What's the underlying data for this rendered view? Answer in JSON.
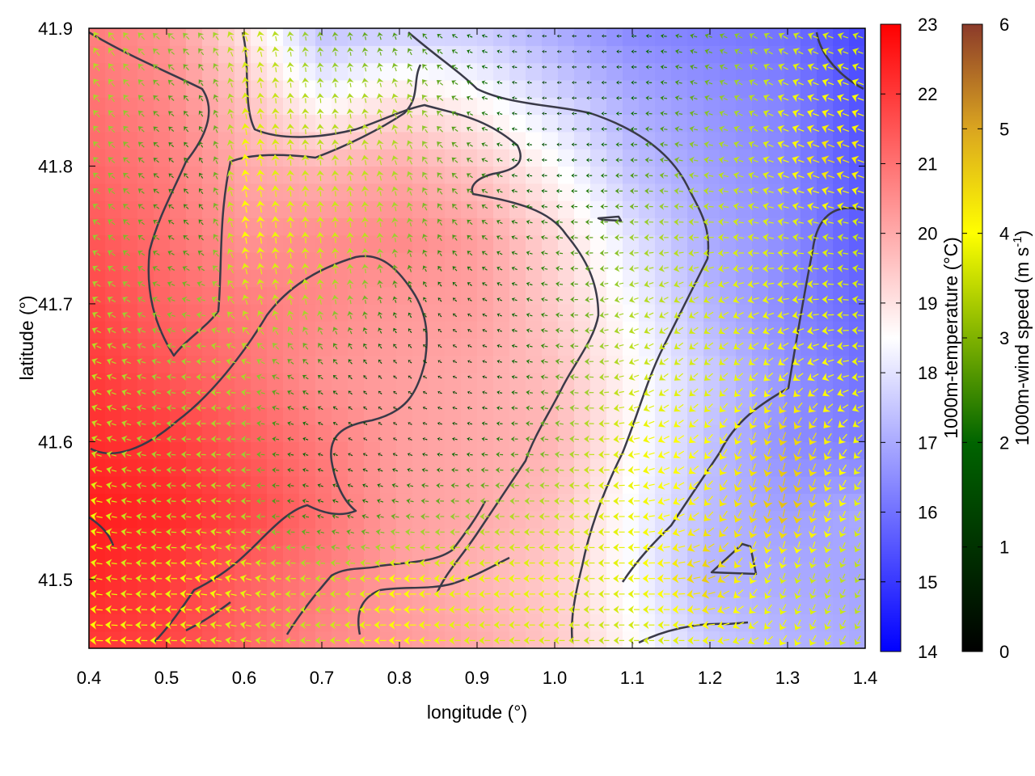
{
  "chart_data": {
    "type": "heatmap",
    "overlay": "vector-field",
    "title": "",
    "xlabel": "longitude (°)",
    "ylabel": "latitude (°)",
    "xlim": [
      0.4,
      1.4
    ],
    "ylim": [
      41.45,
      41.9
    ],
    "x_ticks": [
      {
        "value": 0.4,
        "label": "0.4"
      },
      {
        "value": 0.5,
        "label": "0.5"
      },
      {
        "value": 0.6,
        "label": "0.6"
      },
      {
        "value": 0.7,
        "label": "0.7"
      },
      {
        "value": 0.8,
        "label": "0.8"
      },
      {
        "value": 0.9,
        "label": "0.9"
      },
      {
        "value": 1.0,
        "label": "1.0"
      },
      {
        "value": 1.1,
        "label": "1.1"
      },
      {
        "value": 1.2,
        "label": "1.2"
      },
      {
        "value": 1.3,
        "label": "1.3"
      },
      {
        "value": 1.4,
        "label": "1.4"
      }
    ],
    "y_ticks": [
      {
        "value": 41.5,
        "label": "41.5"
      },
      {
        "value": 41.6,
        "label": "41.6"
      },
      {
        "value": 41.7,
        "label": "41.7"
      },
      {
        "value": 41.8,
        "label": "41.8"
      },
      {
        "value": 41.9,
        "label": "41.9"
      }
    ],
    "temperature_colorbar": {
      "label": "1000m-temperature (°C)",
      "range": [
        14,
        23
      ],
      "ticks": [
        "14",
        "15",
        "16",
        "17",
        "18",
        "19",
        "20",
        "21",
        "22",
        "23"
      ],
      "colors": [
        "#0000ff",
        "#ffffff",
        "#ff0000"
      ]
    },
    "windspeed_colorbar": {
      "label_main": "1000m-wind speed (m s",
      "label_sup": "-1",
      "label_end": ")",
      "range": [
        0,
        6
      ],
      "ticks": [
        "0",
        "1",
        "2",
        "3",
        "4",
        "5",
        "6"
      ],
      "colors": [
        "#000000",
        "#006400",
        "#9acd32",
        "#ffff00",
        "#daa520",
        "#a0522d",
        "#8b3a2a"
      ]
    },
    "temperature_field": {
      "x": [
        0.4,
        0.5,
        0.6,
        0.7,
        0.8,
        0.9,
        1.0,
        1.1,
        1.2,
        1.3,
        1.4
      ],
      "y": [
        41.45,
        41.5,
        41.55,
        41.6,
        41.65,
        41.7,
        41.75,
        41.8,
        41.85,
        41.9
      ],
      "values": [
        [
          22.0,
          21.8,
          21.2,
          20.6,
          20.3,
          20.0,
          19.5,
          18.6,
          17.6,
          17.2,
          17.0
        ],
        [
          22.3,
          22.0,
          21.3,
          20.8,
          20.2,
          19.8,
          19.4,
          18.4,
          17.2,
          17.0,
          16.9
        ],
        [
          22.5,
          22.3,
          21.8,
          21.0,
          20.2,
          20.0,
          19.6,
          18.4,
          17.3,
          16.8,
          17.0
        ],
        [
          22.2,
          22.0,
          21.4,
          20.8,
          20.2,
          20.0,
          19.8,
          18.6,
          17.4,
          16.5,
          16.2
        ],
        [
          22.0,
          21.5,
          21.0,
          20.4,
          20.2,
          20.0,
          19.6,
          18.6,
          17.6,
          16.6,
          16.0
        ],
        [
          21.8,
          21.2,
          20.8,
          20.6,
          20.3,
          20.2,
          19.4,
          18.4,
          17.2,
          16.4,
          15.8
        ],
        [
          21.5,
          21.0,
          20.4,
          20.5,
          20.6,
          20.2,
          19.2,
          18.0,
          17.0,
          16.5,
          15.6
        ],
        [
          21.2,
          20.8,
          20.0,
          19.8,
          20.0,
          19.5,
          18.6,
          17.4,
          16.8,
          16.4,
          15.5
        ],
        [
          21.0,
          20.6,
          19.6,
          18.4,
          19.0,
          18.6,
          17.8,
          17.0,
          16.6,
          16.3,
          15.4
        ],
        [
          20.8,
          20.4,
          19.0,
          17.4,
          17.6,
          17.6,
          17.0,
          16.4,
          16.2,
          16.0,
          15.2
        ]
      ]
    },
    "wind_field": {
      "x": [
        0.4,
        0.45,
        0.5,
        0.55,
        0.6,
        0.65,
        0.7,
        0.75,
        0.8,
        0.85,
        0.9,
        0.95,
        1.0,
        1.05,
        1.1,
        1.15,
        1.2,
        1.25,
        1.3,
        1.35,
        1.4
      ],
      "y": [
        41.45,
        41.5,
        41.55,
        41.6,
        41.65,
        41.7,
        41.75,
        41.8,
        41.85,
        41.9
      ],
      "direction_to_deg": [
        [
          180,
          180,
          180,
          175,
          170,
          180,
          180,
          180,
          180,
          180,
          180,
          180,
          180,
          180,
          180,
          180,
          180,
          200,
          240,
          240,
          240
        ],
        [
          170,
          175,
          180,
          170,
          165,
          180,
          180,
          180,
          180,
          180,
          185,
          180,
          180,
          180,
          180,
          180,
          200,
          240,
          250,
          250,
          240
        ],
        [
          170,
          170,
          175,
          170,
          180,
          180,
          160,
          160,
          170,
          180,
          180,
          180,
          180,
          180,
          180,
          200,
          230,
          250,
          260,
          250,
          240
        ],
        [
          160,
          165,
          175,
          180,
          180,
          170,
          160,
          150,
          150,
          170,
          170,
          180,
          170,
          180,
          190,
          210,
          230,
          250,
          250,
          240,
          220
        ],
        [
          160,
          160,
          170,
          180,
          170,
          150,
          140,
          130,
          140,
          150,
          160,
          170,
          170,
          180,
          200,
          220,
          220,
          220,
          220,
          200,
          180
        ],
        [
          150,
          150,
          160,
          170,
          110,
          100,
          100,
          100,
          110,
          130,
          150,
          160,
          170,
          190,
          200,
          210,
          210,
          200,
          190,
          180,
          170
        ],
        [
          150,
          140,
          150,
          130,
          100,
          95,
          95,
          95,
          100,
          120,
          140,
          160,
          170,
          180,
          180,
          180,
          180,
          170,
          170,
          170,
          170
        ],
        [
          140,
          140,
          140,
          120,
          100,
          95,
          95,
          100,
          110,
          130,
          150,
          170,
          180,
          180,
          180,
          170,
          170,
          160,
          160,
          160,
          160
        ],
        [
          130,
          130,
          140,
          120,
          100,
          95,
          95,
          100,
          110,
          140,
          160,
          170,
          180,
          180,
          180,
          170,
          160,
          150,
          160,
          160,
          160
        ],
        [
          120,
          130,
          140,
          130,
          110,
          100,
          100,
          100,
          110,
          140,
          160,
          170,
          180,
          180,
          180,
          170,
          160,
          150,
          150,
          160,
          160
        ]
      ],
      "speed": [
        [
          3.2,
          3.0,
          2.8,
          2.6,
          2.6,
          2.4,
          2.4,
          2.8,
          3.0,
          2.8,
          2.6,
          2.6,
          2.6,
          2.4,
          2.4,
          2.6,
          2.8,
          2.8,
          3.0,
          2.8,
          2.4
        ],
        [
          2.8,
          2.6,
          2.8,
          3.0,
          2.8,
          2.6,
          2.4,
          2.6,
          3.0,
          2.8,
          2.8,
          2.8,
          2.8,
          2.6,
          2.8,
          3.2,
          3.6,
          3.0,
          2.6,
          2.4,
          2.2
        ],
        [
          3.0,
          2.4,
          2.2,
          2.4,
          2.2,
          1.4,
          1.2,
          1.2,
          1.6,
          1.8,
          2.0,
          2.2,
          2.4,
          2.6,
          2.8,
          3.0,
          3.2,
          3.4,
          3.8,
          3.2,
          2.6
        ],
        [
          2.4,
          2.2,
          2.0,
          2.2,
          2.0,
          1.2,
          0.8,
          0.6,
          0.6,
          0.8,
          1.0,
          1.4,
          1.8,
          2.4,
          2.8,
          3.0,
          3.0,
          3.2,
          3.6,
          3.2,
          2.8
        ],
        [
          2.4,
          2.2,
          2.0,
          2.2,
          2.2,
          1.6,
          1.2,
          0.8,
          0.6,
          0.6,
          0.6,
          1.0,
          1.6,
          2.0,
          2.4,
          2.6,
          2.6,
          2.8,
          3.0,
          3.0,
          2.8
        ],
        [
          2.2,
          2.0,
          1.8,
          2.0,
          2.4,
          2.4,
          2.2,
          1.8,
          1.2,
          0.8,
          0.8,
          1.0,
          1.4,
          1.8,
          2.2,
          2.4,
          2.6,
          2.8,
          2.8,
          2.8,
          2.6
        ],
        [
          2.0,
          1.8,
          1.4,
          1.4,
          3.0,
          2.8,
          2.6,
          2.4,
          2.0,
          1.6,
          1.4,
          1.2,
          1.4,
          1.6,
          2.0,
          2.2,
          2.4,
          2.6,
          2.6,
          2.6,
          2.4
        ],
        [
          2.0,
          1.8,
          1.2,
          1.2,
          3.0,
          2.6,
          2.4,
          2.4,
          2.2,
          1.8,
          1.4,
          1.0,
          0.8,
          1.0,
          1.4,
          1.8,
          2.2,
          2.4,
          3.0,
          3.4,
          3.2
        ],
        [
          2.2,
          2.0,
          1.6,
          1.4,
          2.6,
          2.4,
          2.2,
          2.2,
          2.2,
          1.8,
          1.2,
          0.8,
          0.6,
          0.8,
          1.0,
          1.4,
          1.8,
          2.2,
          2.8,
          3.0,
          3.0
        ],
        [
          2.4,
          2.2,
          2.0,
          2.0,
          2.6,
          2.2,
          1.8,
          1.6,
          1.4,
          1.2,
          1.0,
          0.8,
          0.6,
          0.6,
          0.8,
          1.2,
          1.6,
          2.0,
          2.4,
          2.6,
          2.4
        ]
      ]
    }
  }
}
